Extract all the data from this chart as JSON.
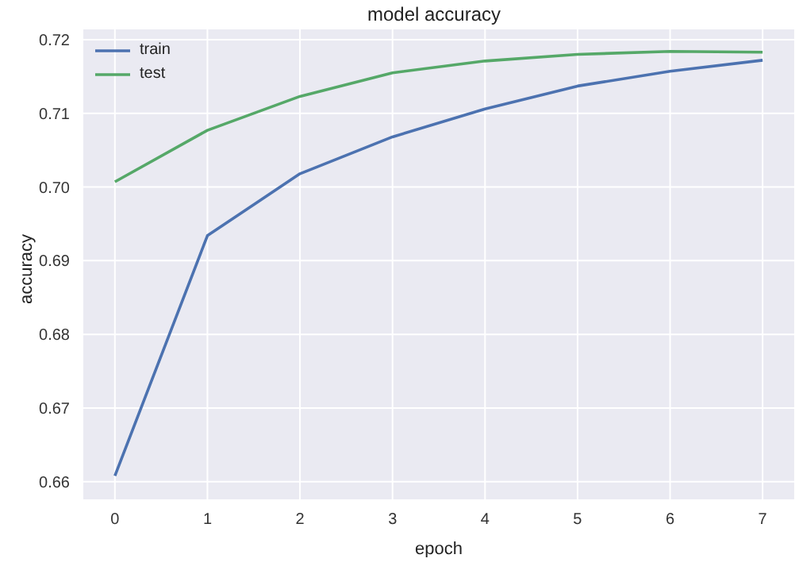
{
  "chart_data": {
    "type": "line",
    "title": "model accuracy",
    "xlabel": "epoch",
    "ylabel": "accuracy",
    "x": [
      0,
      1,
      2,
      3,
      4,
      5,
      6,
      7
    ],
    "series": [
      {
        "name": "train",
        "color": "#4c72b0",
        "values": [
          0.6608,
          0.6934,
          0.7018,
          0.7068,
          0.7106,
          0.7137,
          0.7157,
          0.7172
        ]
      },
      {
        "name": "test",
        "color": "#55a868",
        "values": [
          0.7007,
          0.7077,
          0.7123,
          0.7155,
          0.7171,
          0.718,
          0.7184,
          0.7183
        ]
      }
    ],
    "xlim": [
      -0.35,
      7.35
    ],
    "xticks": [
      0,
      1,
      2,
      3,
      4,
      5,
      6,
      7
    ],
    "ylim": [
      0.6575,
      0.7215
    ],
    "yticks": [
      0.66,
      0.67,
      0.68,
      0.69,
      {
        "value": 0.7,
        "label": "0.70"
      },
      0.71,
      0.72
    ],
    "grid": true,
    "legend": "top left",
    "marker": "none",
    "line_style": "solid"
  }
}
